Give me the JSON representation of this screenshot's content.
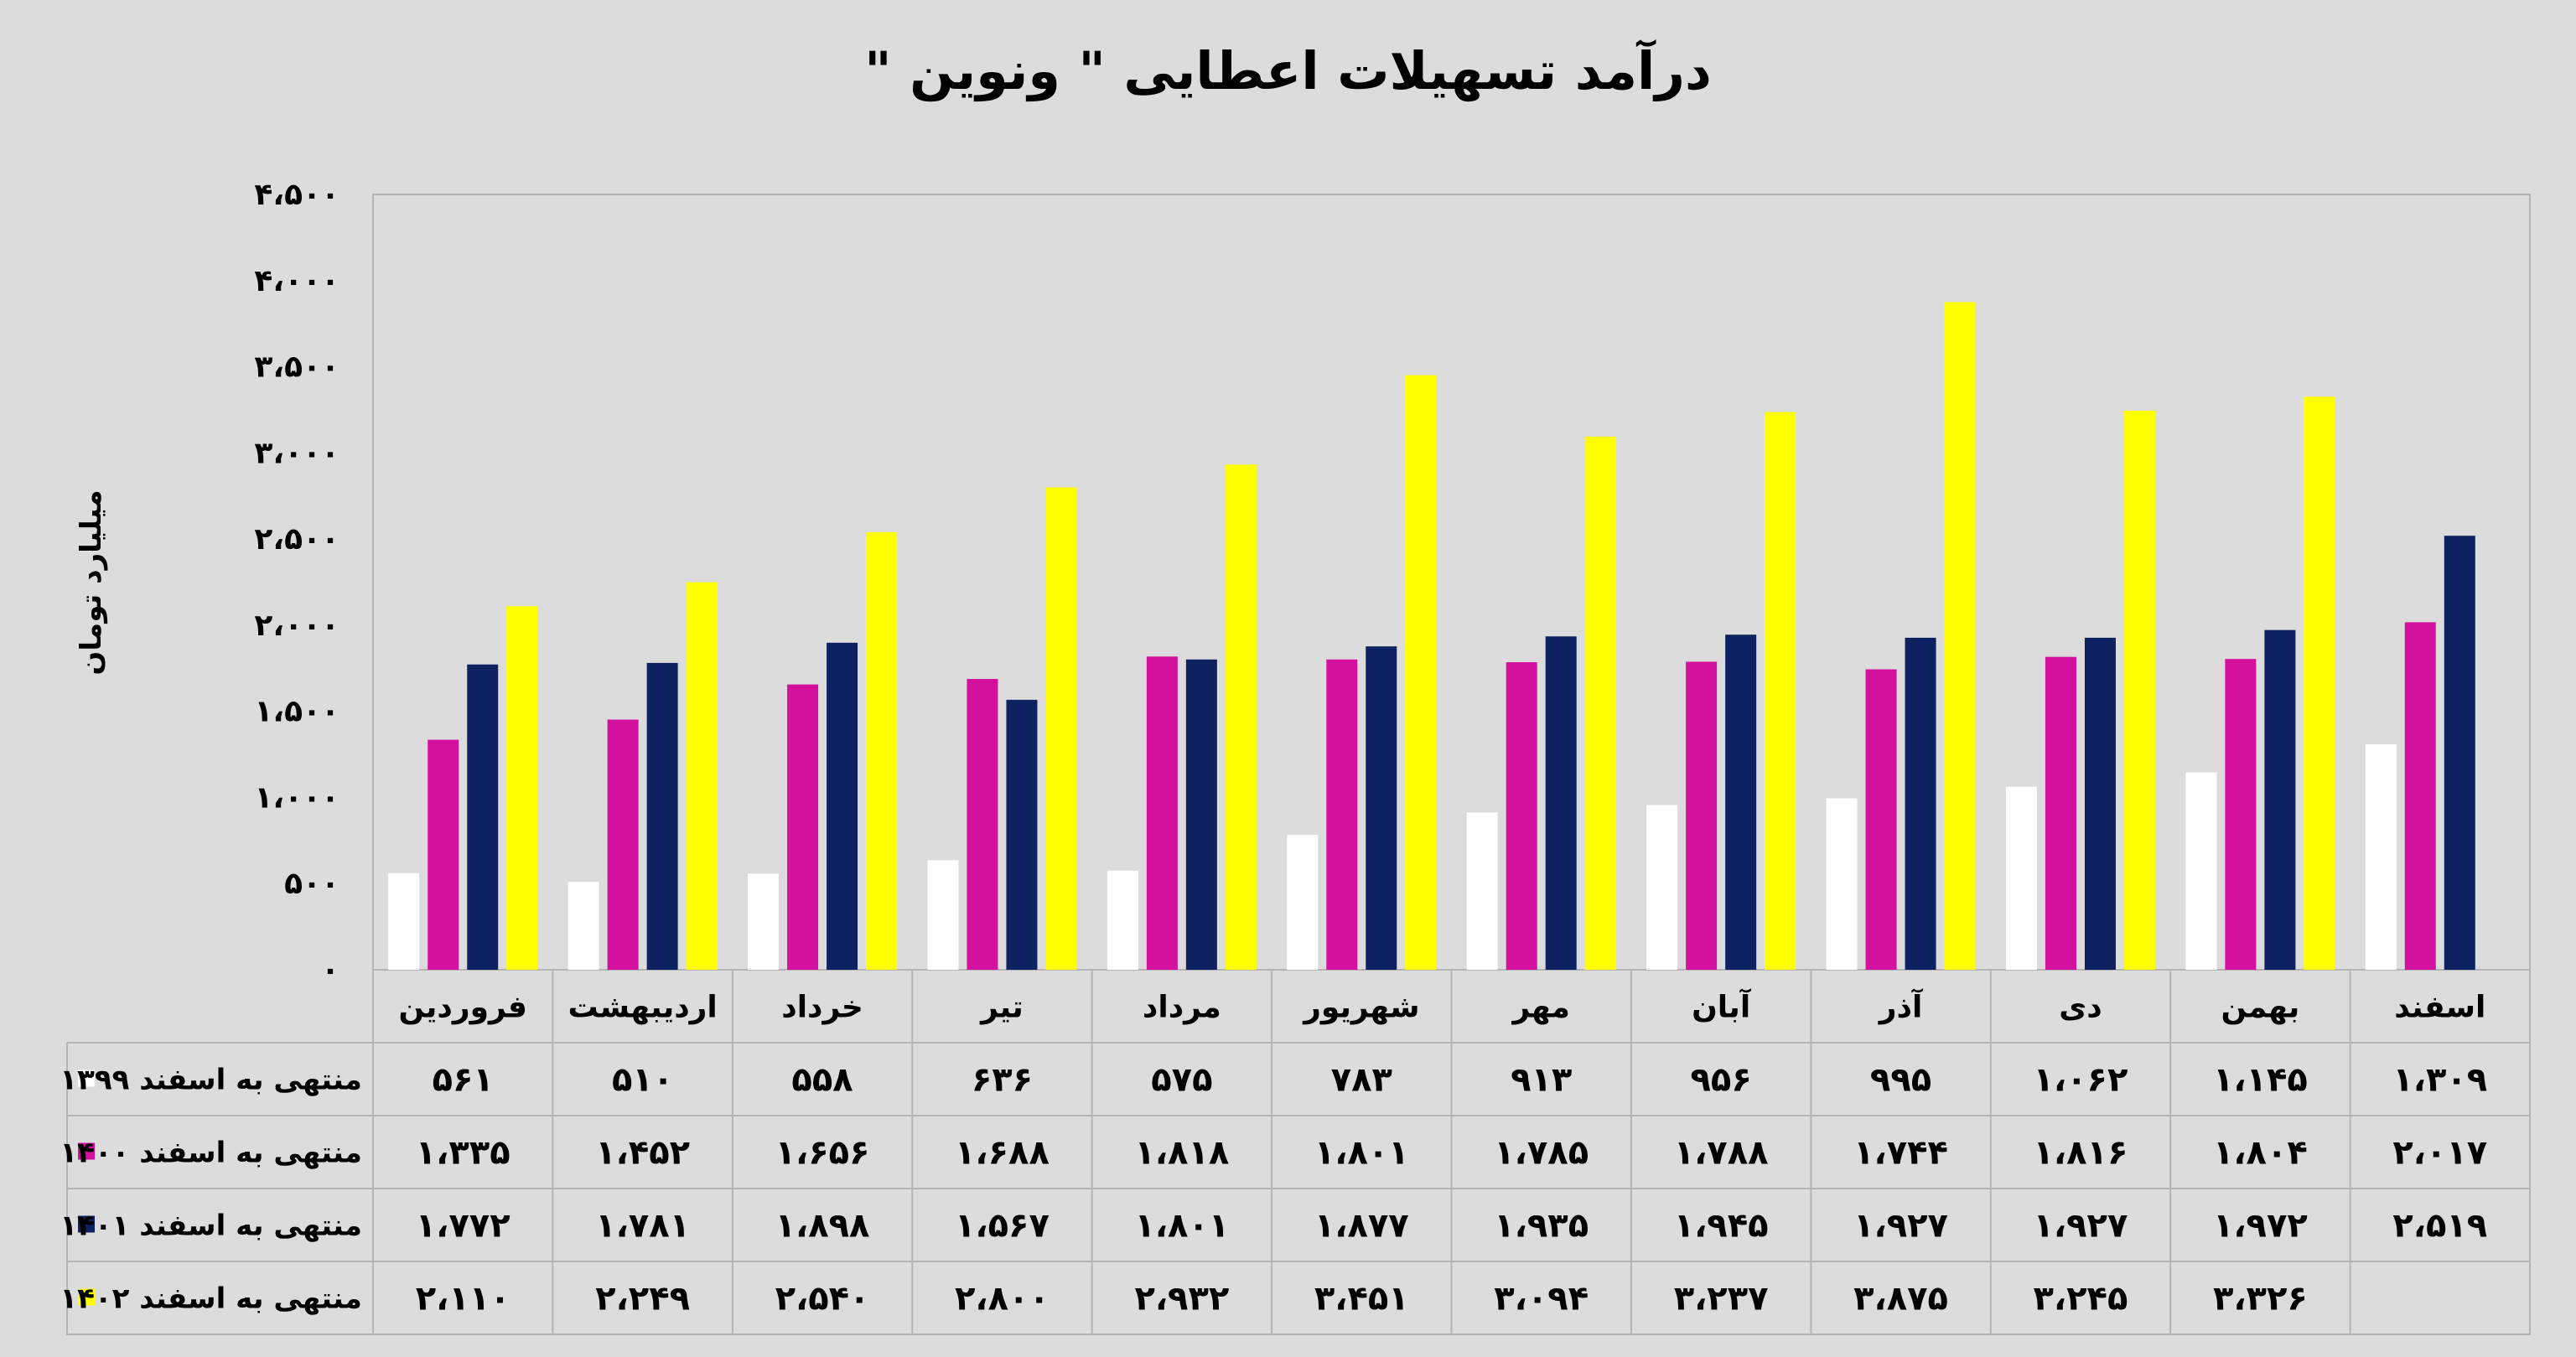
{
  "chart_data": {
    "type": "bar",
    "title": "درآمد تسهیلات اعطایی \" ونوین \"",
    "ylabel": "میلیارد تومان",
    "ylim": [
      0,
      4500
    ],
    "yticks": [
      {
        "value": 0,
        "label": "۰"
      },
      {
        "value": 500,
        "label": "۵۰۰"
      },
      {
        "value": 1000,
        "label": "۱،۰۰۰"
      },
      {
        "value": 1500,
        "label": "۱،۵۰۰"
      },
      {
        "value": 2000,
        "label": "۲،۰۰۰"
      },
      {
        "value": 2500,
        "label": "۲،۵۰۰"
      },
      {
        "value": 3000,
        "label": "۳،۰۰۰"
      },
      {
        "value": 3500,
        "label": "۳،۵۰۰"
      },
      {
        "value": 4000,
        "label": "۴،۰۰۰"
      },
      {
        "value": 4500,
        "label": "۴،۵۰۰"
      }
    ],
    "grid": false,
    "categories": [
      "فروردین",
      "اردیبهشت",
      "خرداد",
      "تیر",
      "مرداد",
      "شهریور",
      "مهر",
      "آبان",
      "آذر",
      "دی",
      "بهمن",
      "اسفند"
    ],
    "series": [
      {
        "name": "منتهی به اسفند ۱۳۹۹",
        "color": "#ffffff",
        "values": [
          561,
          510,
          558,
          636,
          575,
          783,
          913,
          956,
          995,
          1062,
          1145,
          1309
        ],
        "labels": [
          "۵۶۱",
          "۵۱۰",
          "۵۵۸",
          "۶۳۶",
          "۵۷۵",
          "۷۸۳",
          "۹۱۳",
          "۹۵۶",
          "۹۹۵",
          "۱،۰۶۲",
          "۱،۱۴۵",
          "۱،۳۰۹"
        ]
      },
      {
        "name": "منتهی به اسفند ۱۴۰۰",
        "color": "#d4119e",
        "values": [
          1335,
          1452,
          1656,
          1688,
          1818,
          1801,
          1785,
          1788,
          1744,
          1816,
          1804,
          2017
        ],
        "labels": [
          "۱،۳۳۵",
          "۱،۴۵۲",
          "۱،۶۵۶",
          "۱،۶۸۸",
          "۱،۸۱۸",
          "۱،۸۰۱",
          "۱،۷۸۵",
          "۱،۷۸۸",
          "۱،۷۴۴",
          "۱،۸۱۶",
          "۱،۸۰۴",
          "۲،۰۱۷"
        ]
      },
      {
        "name": "منتهی به اسفند ۱۴۰۱",
        "color": "#0e2160",
        "values": [
          1772,
          1781,
          1898,
          1567,
          1801,
          1877,
          1935,
          1945,
          1927,
          1927,
          1972,
          2519
        ],
        "labels": [
          "۱،۷۷۲",
          "۱،۷۸۱",
          "۱،۸۹۸",
          "۱،۵۶۷",
          "۱،۸۰۱",
          "۱،۸۷۷",
          "۱،۹۳۵",
          "۱،۹۴۵",
          "۱،۹۲۷",
          "۱،۹۲۷",
          "۱،۹۷۲",
          "۲،۵۱۹"
        ]
      },
      {
        "name": "منتهی به اسفند ۱۴۰۲",
        "color": "#ffff00",
        "values": [
          2110,
          2249,
          2540,
          2800,
          2932,
          3451,
          3094,
          3237,
          3875,
          3245,
          3326,
          null
        ],
        "labels": [
          "۲،۱۱۰",
          "۲،۲۴۹",
          "۲،۵۴۰",
          "۲،۸۰۰",
          "۲،۹۳۲",
          "۳،۴۵۱",
          "۳،۰۹۴",
          "۳،۲۳۷",
          "۳،۸۷۵",
          "۳،۲۴۵",
          "۳،۳۲۶",
          ""
        ]
      }
    ]
  }
}
